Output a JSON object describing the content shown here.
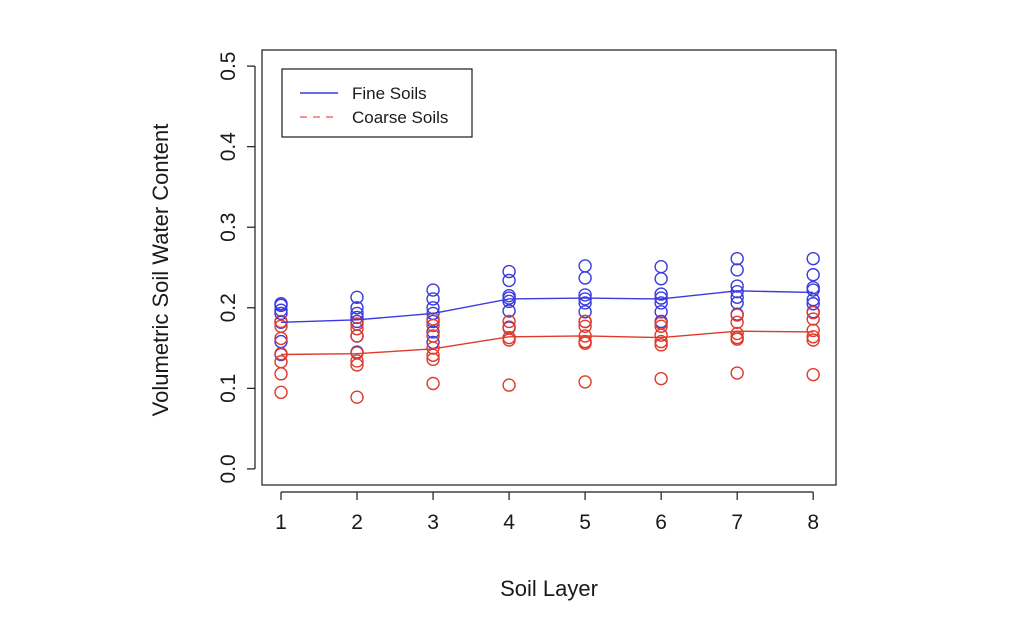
{
  "chart_data": {
    "type": "scatter",
    "title": "",
    "xlabel": "Soil Layer",
    "ylabel": "Volumetric Soil Water Content",
    "xlim": [
      0.75,
      8.3
    ],
    "ylim": [
      -0.02,
      0.52
    ],
    "x_ticks": [
      1,
      2,
      3,
      4,
      5,
      6,
      7,
      8
    ],
    "x_tick_labels": [
      "1",
      "2",
      "3",
      "4",
      "5",
      "6",
      "7",
      "8"
    ],
    "y_ticks": [
      0.0,
      0.1,
      0.2,
      0.3,
      0.4,
      0.5
    ],
    "y_tick_labels": [
      "0.0",
      "0.1",
      "0.2",
      "0.3",
      "0.4",
      "0.5"
    ],
    "grid": false,
    "legend_position": "top-left",
    "legend": [
      {
        "label": "Fine Soils",
        "color": "#3a3ae0",
        "style": "solid"
      },
      {
        "label": "Coarse Soils",
        "color": "#f07070",
        "style": "dashed"
      }
    ],
    "series": [
      {
        "name": "Fine Soils",
        "color": "#3a3ae0",
        "mean_line": [
          0.182,
          0.185,
          0.193,
          0.211,
          0.212,
          0.211,
          0.221,
          0.219
        ],
        "points": [
          [
            0.205,
            0.203,
            0.197,
            0.193,
            0.182,
            0.158,
            0.142
          ],
          [
            0.213,
            0.2,
            0.193,
            0.188,
            0.183,
            0.165,
            0.145
          ],
          [
            0.222,
            0.211,
            0.2,
            0.193,
            0.183,
            0.17,
            0.157
          ],
          [
            0.245,
            0.234,
            0.215,
            0.212,
            0.208,
            0.196,
            0.175
          ],
          [
            0.252,
            0.237,
            0.216,
            0.211,
            0.206,
            0.195,
            0.183
          ],
          [
            0.251,
            0.236,
            0.217,
            0.212,
            0.206,
            0.195,
            0.183
          ],
          [
            0.261,
            0.247,
            0.227,
            0.22,
            0.213,
            0.206,
            0.192
          ],
          [
            0.261,
            0.241,
            0.225,
            0.222,
            0.21,
            0.205,
            0.195
          ]
        ]
      },
      {
        "name": "Coarse Soils",
        "color": "#e03a2a",
        "mean_line": [
          0.142,
          0.143,
          0.149,
          0.164,
          0.165,
          0.163,
          0.171,
          0.17
        ],
        "points": [
          [
            0.183,
            0.177,
            0.162,
            0.143,
            0.133,
            0.118,
            0.095
          ],
          [
            0.18,
            0.174,
            0.165,
            0.144,
            0.134,
            0.129,
            0.089
          ],
          [
            0.186,
            0.178,
            0.165,
            0.15,
            0.141,
            0.136,
            0.106
          ],
          [
            0.183,
            0.176,
            0.163,
            0.16,
            0.104
          ],
          [
            0.183,
            0.177,
            0.165,
            0.158,
            0.156,
            0.108
          ],
          [
            0.181,
            0.177,
            0.166,
            0.158,
            0.154,
            0.112
          ],
          [
            0.191,
            0.182,
            0.168,
            0.163,
            0.161,
            0.119
          ],
          [
            0.194,
            0.186,
            0.172,
            0.164,
            0.16,
            0.117
          ]
        ]
      }
    ]
  }
}
